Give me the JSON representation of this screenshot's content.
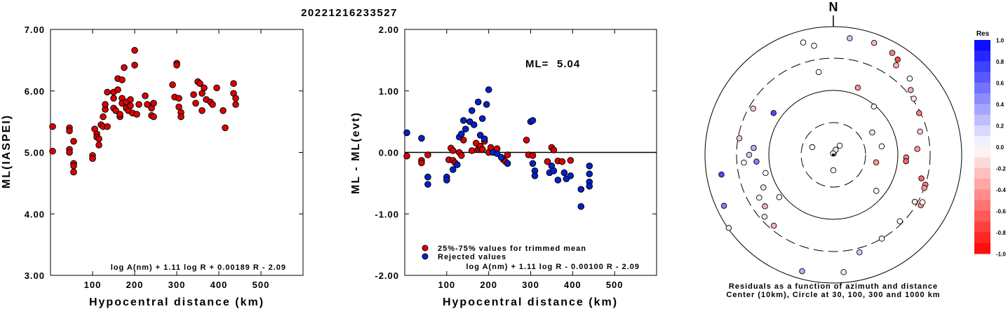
{
  "title": "20221216233527",
  "chart_data": [
    {
      "type": "scatter",
      "xlabel": "Hypocentral distance (km)",
      "ylabel": "ML(IASPEI)",
      "xlim": [
        0,
        600
      ],
      "ylim": [
        3.0,
        7.0
      ],
      "x_ticks": [
        "100",
        "200",
        "300",
        "400",
        "500"
      ],
      "y_ticks": [
        "3.00",
        "4.00",
        "5.00",
        "6.00",
        "7.00"
      ],
      "annotation": "log A(nm) + 1.11 log R + 0.00189 R - 2.09",
      "point_color": "#dd0000",
      "points": [
        [
          5,
          5.42
        ],
        [
          5,
          5.02
        ],
        [
          45,
          5.4
        ],
        [
          45,
          5.35
        ],
        [
          45,
          5.05
        ],
        [
          45,
          5.0
        ],
        [
          55,
          4.82
        ],
        [
          55,
          4.78
        ],
        [
          55,
          4.68
        ],
        [
          55,
          5.18
        ],
        [
          100,
          4.95
        ],
        [
          100,
          4.9
        ],
        [
          105,
          5.38
        ],
        [
          110,
          5.3
        ],
        [
          110,
          5.25
        ],
        [
          115,
          5.12
        ],
        [
          115,
          5.22
        ],
        [
          120,
          5.45
        ],
        [
          125,
          5.58
        ],
        [
          125,
          5.42
        ],
        [
          130,
          5.7
        ],
        [
          130,
          5.78
        ],
        [
          135,
          5.42
        ],
        [
          135,
          5.98
        ],
        [
          150,
          5.98
        ],
        [
          150,
          5.88
        ],
        [
          150,
          5.72
        ],
        [
          155,
          5.68
        ],
        [
          160,
          6.2
        ],
        [
          160,
          6.02
        ],
        [
          165,
          5.58
        ],
        [
          165,
          5.62
        ],
        [
          170,
          6.18
        ],
        [
          170,
          5.88
        ],
        [
          170,
          5.8
        ],
        [
          175,
          6.38
        ],
        [
          180,
          5.72
        ],
        [
          180,
          5.82
        ],
        [
          185,
          5.68
        ],
        [
          190,
          5.76
        ],
        [
          190,
          5.86
        ],
        [
          195,
          5.64
        ],
        [
          200,
          6.66
        ],
        [
          200,
          6.42
        ],
        [
          205,
          5.62
        ],
        [
          210,
          5.78
        ],
        [
          225,
          5.92
        ],
        [
          230,
          5.78
        ],
        [
          240,
          5.72
        ],
        [
          240,
          5.6
        ],
        [
          245,
          5.58
        ],
        [
          245,
          5.8
        ],
        [
          290,
          6.1
        ],
        [
          295,
          5.9
        ],
        [
          300,
          6.45
        ],
        [
          300,
          6.42
        ],
        [
          305,
          5.88
        ],
        [
          305,
          5.74
        ],
        [
          310,
          5.65
        ],
        [
          310,
          5.58
        ],
        [
          340,
          5.94
        ],
        [
          345,
          5.8
        ],
        [
          350,
          6.15
        ],
        [
          355,
          6.12
        ],
        [
          360,
          5.96
        ],
        [
          360,
          5.68
        ],
        [
          365,
          6.05
        ],
        [
          370,
          5.86
        ],
        [
          380,
          5.82
        ],
        [
          385,
          5.78
        ],
        [
          395,
          6.05
        ],
        [
          410,
          5.68
        ],
        [
          415,
          5.4
        ],
        [
          435,
          6.12
        ],
        [
          435,
          5.96
        ],
        [
          440,
          5.88
        ],
        [
          440,
          5.78
        ]
      ]
    },
    {
      "type": "scatter",
      "xlabel": "Hypocentral distance (km)",
      "ylabel": "ML - ML(evt)",
      "xlim": [
        0,
        600
      ],
      "ylim": [
        -2.0,
        2.0
      ],
      "x_ticks": [
        "100",
        "200",
        "300",
        "400",
        "500"
      ],
      "y_ticks": [
        "-2.00",
        "-1.00",
        "0.00",
        "1.00",
        "2.00"
      ],
      "ml_label": "ML=",
      "ml_value": "5.04",
      "annotation": "log A(nm) + 1.11 log R - 0.00100 R - 2.09",
      "legend": [
        {
          "label": "25%-75% values for trimmed mean",
          "color": "#dd0000"
        },
        {
          "label": "Rejected values",
          "color": "#0022cc"
        }
      ],
      "points_trimmed": [
        [
          5,
          -0.06
        ],
        [
          40,
          -0.13
        ],
        [
          40,
          -0.17
        ],
        [
          55,
          -0.04
        ],
        [
          105,
          -0.12
        ],
        [
          110,
          0.07
        ],
        [
          115,
          0.03
        ],
        [
          115,
          -0.13
        ],
        [
          120,
          -0.17
        ],
        [
          130,
          0.0
        ],
        [
          135,
          -0.05
        ],
        [
          140,
          0.2
        ],
        [
          160,
          0.03
        ],
        [
          170,
          0.15
        ],
        [
          175,
          0.05
        ],
        [
          180,
          0.08
        ],
        [
          180,
          0.1
        ],
        [
          185,
          0.05
        ],
        [
          190,
          0.18
        ],
        [
          200,
          0.0
        ],
        [
          205,
          0.08
        ],
        [
          220,
          0.06
        ],
        [
          235,
          -0.12
        ],
        [
          240,
          -0.15
        ],
        [
          245,
          -0.04
        ],
        [
          290,
          0.2
        ],
        [
          295,
          -0.04
        ],
        [
          305,
          -0.05
        ],
        [
          340,
          -0.15
        ],
        [
          350,
          0.08
        ],
        [
          355,
          0.04
        ],
        [
          365,
          -0.14
        ],
        [
          375,
          -0.15
        ],
        [
          395,
          -0.13
        ]
      ],
      "points_rejected": [
        [
          5,
          0.32
        ],
        [
          40,
          0.23
        ],
        [
          55,
          -0.4
        ],
        [
          55,
          -0.52
        ],
        [
          100,
          -0.4
        ],
        [
          100,
          -0.45
        ],
        [
          115,
          -0.28
        ],
        [
          125,
          -0.2
        ],
        [
          130,
          0.25
        ],
        [
          135,
          0.3
        ],
        [
          140,
          0.52
        ],
        [
          145,
          0.38
        ],
        [
          155,
          0.5
        ],
        [
          160,
          0.68
        ],
        [
          165,
          0.45
        ],
        [
          175,
          0.82
        ],
        [
          180,
          0.28
        ],
        [
          185,
          0.55
        ],
        [
          190,
          0.22
        ],
        [
          195,
          0.78
        ],
        [
          200,
          1.02
        ],
        [
          210,
          0.0
        ],
        [
          220,
          -0.02
        ],
        [
          230,
          -0.08
        ],
        [
          245,
          -0.18
        ],
        [
          300,
          0.5
        ],
        [
          305,
          0.52
        ],
        [
          305,
          -0.18
        ],
        [
          310,
          -0.3
        ],
        [
          310,
          -0.38
        ],
        [
          345,
          -0.33
        ],
        [
          350,
          -0.22
        ],
        [
          355,
          -0.3
        ],
        [
          365,
          -0.45
        ],
        [
          380,
          -0.33
        ],
        [
          385,
          -0.43
        ],
        [
          395,
          -0.38
        ],
        [
          420,
          -0.6
        ],
        [
          420,
          -0.88
        ],
        [
          440,
          -0.22
        ],
        [
          440,
          -0.35
        ],
        [
          440,
          -0.48
        ],
        [
          440,
          -0.55
        ]
      ]
    },
    {
      "type": "scatter",
      "subtype": "polar-residuals",
      "north_label": "N",
      "caption_line1": "Residuals as a function of azimuth and distance",
      "caption_line2": "Center (10km), Circle at 30, 100, 300 and 1000 km",
      "colorbar_title": "Res",
      "colorbar_range": [
        -1.0,
        1.0
      ],
      "colorbar_ticks": [
        "1.0",
        "0.8",
        "0.6",
        "0.4",
        "0.2",
        "0.0",
        "-0.2",
        "-0.4",
        "-0.6",
        "-0.8",
        "-1.0"
      ],
      "points_polar": [
        [
          5,
          10,
          0.0
        ],
        [
          20,
          25,
          -0.1
        ],
        [
          40,
          35,
          0.0
        ],
        [
          55,
          180,
          0.0
        ],
        [
          5,
          350,
          0.0
        ],
        [
          225,
          40,
          0.0
        ],
        [
          300,
          350,
          0.0
        ],
        [
          260,
          305,
          0.7
        ],
        [
          255,
          20,
          -0.4
        ],
        [
          420,
          175,
          -0.1
        ],
        [
          430,
          195,
          0.3
        ],
        [
          455,
          235,
          -0.1
        ],
        [
          405,
          260,
          0.7
        ],
        [
          430,
          245,
          0.5
        ],
        [
          160,
          60,
          -0.1
        ],
        [
          155,
          100,
          -0.4
        ],
        [
          200,
          130,
          0.0
        ],
        [
          80,
          290,
          0.0
        ],
        [
          175,
          80,
          0.0
        ],
        [
          360,
          165,
          0.2
        ],
        [
          415,
          345,
          0.0
        ],
        [
          395,
          350,
          0.0
        ],
        [
          420,
          8,
          0.2
        ],
        [
          425,
          20,
          -0.3
        ],
        [
          420,
          30,
          -0.5
        ],
        [
          410,
          34,
          -0.7
        ],
        [
          390,
          35,
          -0.3
        ],
        [
          385,
          45,
          0.0
        ],
        [
          360,
          50,
          -0.3
        ],
        [
          350,
          55,
          -0.1
        ],
        [
          340,
          64,
          -0.5
        ],
        [
          320,
          75,
          -0.2
        ],
        [
          325,
          105,
          -0.6
        ],
        [
          345,
          108,
          -0.5
        ],
        [
          335,
          120,
          -0.1
        ],
        [
          335,
          135,
          0.0
        ],
        [
          345,
          150,
          0.0
        ],
        [
          330,
          220,
          -0.3
        ],
        [
          305,
          233,
          -0.3
        ],
        [
          330,
          228,
          0.1
        ],
        [
          305,
          240,
          0.0
        ],
        [
          275,
          245,
          0.1
        ],
        [
          275,
          265,
          0.5
        ],
        [
          285,
          275,
          0.3
        ],
        [
          300,
          270,
          0.2
        ],
        [
          320,
          265,
          0.0
        ],
        [
          340,
          280,
          -0.2
        ],
        [
          330,
          300,
          -0.2
        ],
        [
          250,
          255,
          0.0
        ],
        [
          245,
          232,
          0.0
        ],
        [
          345,
          110,
          -0.4
        ],
        [
          360,
          120,
          -0.4
        ],
        [
          360,
          118,
          0.0
        ],
        [
          300,
          86,
          -0.4
        ],
        [
          260,
          92,
          -0.5
        ],
        [
          260,
          95,
          -0.6
        ]
      ]
    }
  ]
}
